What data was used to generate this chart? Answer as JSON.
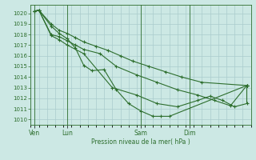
{
  "bg_color": "#cce8e4",
  "grid_color": "#aacccc",
  "line_color": "#2d6e2d",
  "ylabel": "Pression niveau de la mer( hPa )",
  "ylim": [
    1009.5,
    1020.8
  ],
  "yticks": [
    1010,
    1011,
    1012,
    1013,
    1014,
    1015,
    1016,
    1017,
    1018,
    1019,
    1020
  ],
  "xtick_labels": [
    "Ven",
    "Lun",
    "Sam",
    "Dim"
  ],
  "vline_positions": [
    0.5,
    4.5,
    13.5,
    19.5
  ],
  "xlim": [
    0,
    27
  ],
  "line1_x": [
    0.5,
    1.0,
    2.5,
    3.5,
    4.5,
    5.5,
    6.5,
    7.5,
    9.0,
    10.5,
    12.0,
    13.5,
    15.0,
    16.0,
    17.0,
    26.5
  ],
  "line1_y": [
    1020.2,
    1020.3,
    1018.8,
    1018.1,
    1017.6,
    1016.7,
    1015.1,
    1014.6,
    1014.7,
    1012.8,
    1011.5,
    1010.8,
    1010.3,
    1010.3,
    1010.3,
    1013.2
  ],
  "line2_x": [
    0.5,
    1.0,
    2.5,
    3.5,
    4.5,
    5.5,
    6.5,
    8.0,
    9.5,
    11.0,
    12.5,
    14.5,
    16.5,
    18.5,
    21.0,
    26.5
  ],
  "line2_y": [
    1020.2,
    1020.3,
    1019.0,
    1018.4,
    1018.1,
    1017.7,
    1017.3,
    1016.9,
    1016.5,
    1016.0,
    1015.5,
    1015.0,
    1014.5,
    1014.0,
    1013.5,
    1013.2
  ],
  "line3_x": [
    0.5,
    1.0,
    2.5,
    3.5,
    4.5,
    5.5,
    6.5,
    8.5,
    10.5,
    13.0,
    15.5,
    18.0,
    20.5,
    22.5,
    24.5,
    26.5
  ],
  "line3_y": [
    1020.2,
    1020.3,
    1018.0,
    1017.8,
    1017.4,
    1017.0,
    1016.6,
    1016.2,
    1015.0,
    1014.2,
    1013.5,
    1012.8,
    1012.3,
    1011.8,
    1011.3,
    1013.2
  ],
  "line4_x": [
    0.5,
    1.0,
    2.5,
    3.5,
    4.5,
    6.5,
    10.0,
    13.0,
    15.5,
    18.0,
    20.5,
    22.0,
    23.5,
    25.0,
    26.5,
    26.5
  ],
  "line4_y": [
    1020.2,
    1020.3,
    1017.9,
    1017.5,
    1017.0,
    1016.2,
    1013.0,
    1012.3,
    1011.5,
    1011.2,
    1011.8,
    1012.2,
    1011.8,
    1011.2,
    1011.5,
    1013.2
  ]
}
